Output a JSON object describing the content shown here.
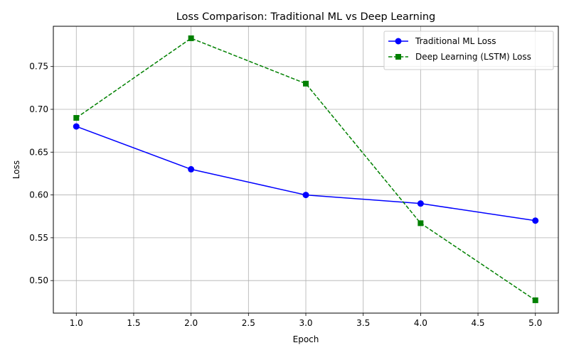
{
  "chart_data": {
    "type": "line",
    "title": "Loss Comparison: Traditional ML vs Deep Learning",
    "xlabel": "Epoch",
    "ylabel": "Loss",
    "xlim": [
      0.8,
      5.2
    ],
    "ylim": [
      0.462,
      0.797
    ],
    "xticks": [
      "1.0",
      "1.5",
      "2.0",
      "2.5",
      "3.0",
      "3.5",
      "4.0",
      "4.5",
      "5.0"
    ],
    "yticks": [
      "0.50",
      "0.55",
      "0.60",
      "0.65",
      "0.70",
      "0.75"
    ],
    "grid": true,
    "legend_position": "top-right",
    "x": [
      1,
      2,
      3,
      4,
      5
    ],
    "series": [
      {
        "name": "Traditional ML Loss",
        "values": [
          0.68,
          0.63,
          0.6,
          0.59,
          0.57
        ],
        "color": "#0000ff",
        "line_style": "solid",
        "marker": "circle"
      },
      {
        "name": "Deep Learning (LSTM) Loss",
        "values": [
          0.69,
          0.783,
          0.73,
          0.567,
          0.477
        ],
        "color": "#008000",
        "line_style": "dashed",
        "marker": "square"
      }
    ]
  }
}
